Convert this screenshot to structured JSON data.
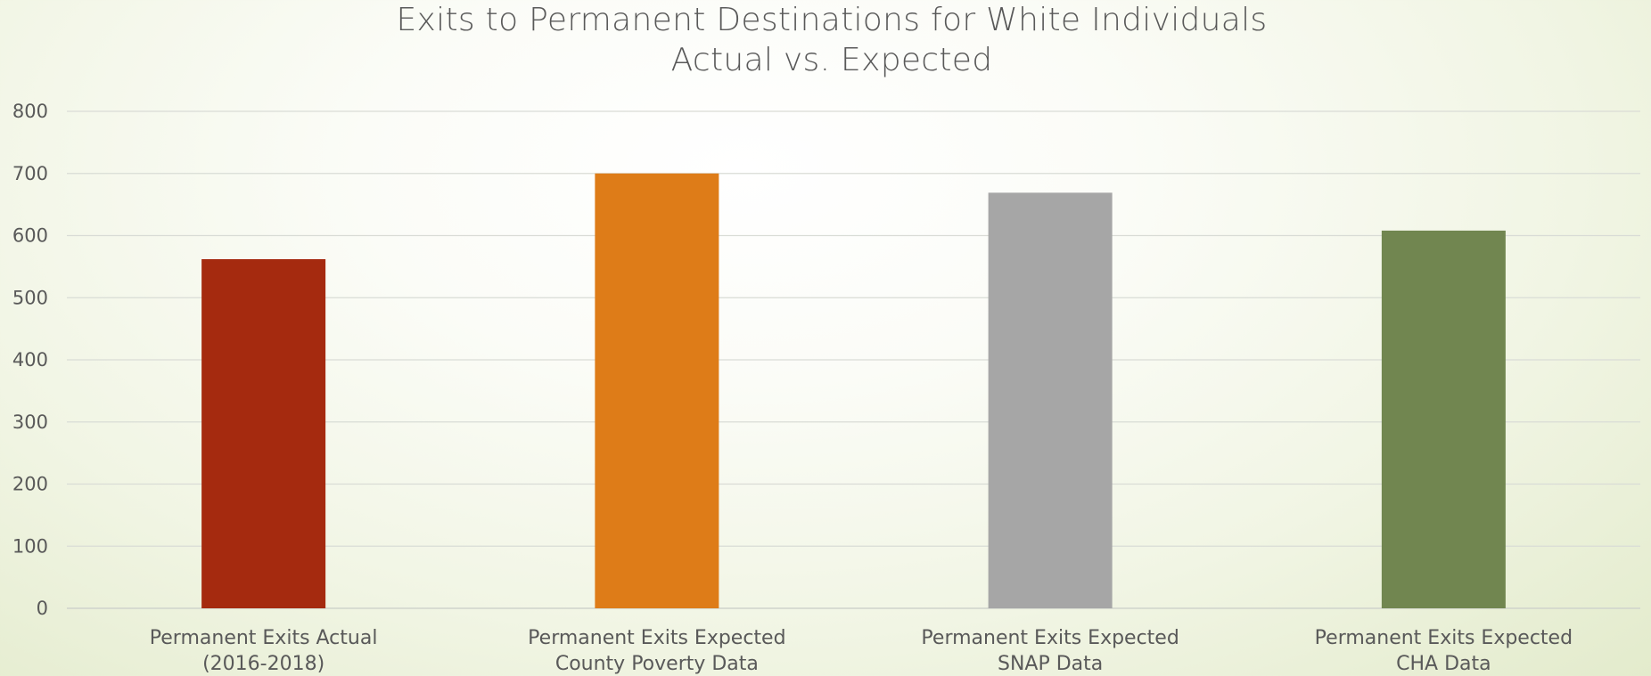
{
  "chart_data": {
    "type": "bar",
    "title": [
      "Exits to Permanent Destinations for White Individuals",
      "Actual vs. Expected"
    ],
    "categories": [
      [
        "Permanent Exits Actual",
        "(2016-2018)"
      ],
      [
        "Permanent Exits Expected",
        "County Poverty Data"
      ],
      [
        "Permanent Exits Expected",
        "SNAP Data"
      ],
      [
        "Permanent Exits Expected",
        "CHA Data"
      ]
    ],
    "values": [
      562,
      700,
      669,
      608
    ],
    "colors": [
      "#a52a0f",
      "#de7c18",
      "#a6a6a6",
      "#718650"
    ],
    "ylim": [
      0,
      800
    ],
    "yticks": [
      0,
      100,
      200,
      300,
      400,
      500,
      600,
      700,
      800
    ],
    "grid": true,
    "legend": "none"
  }
}
